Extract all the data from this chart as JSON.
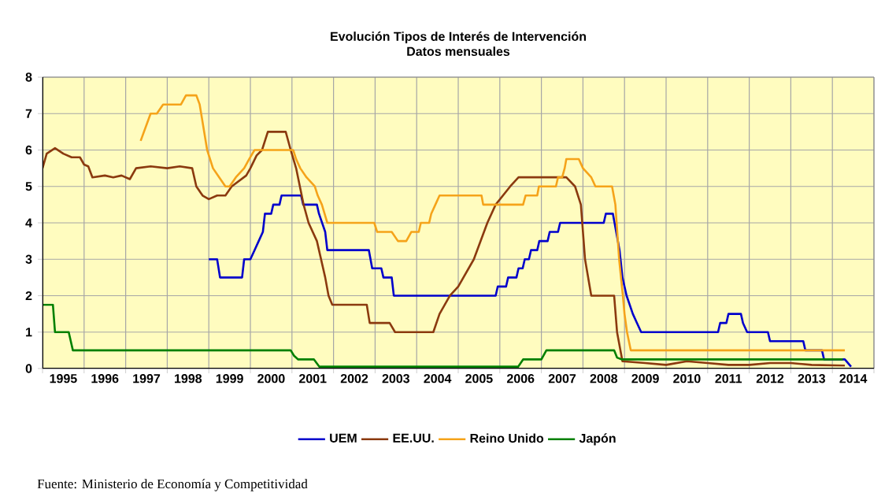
{
  "chart_data": {
    "type": "line",
    "title": "Evolución Tipos de Interés de Intervención",
    "subtitle": "Datos mensuales",
    "annotations": [
      "Fuente: Ministerio de Economía y Competitividad"
    ],
    "xlim": [
      1995,
      2015
    ],
    "xticks": [
      {
        "value": 1995,
        "label": null
      },
      {
        "value": 1996,
        "label": null
      },
      {
        "value": 1997,
        "label": null
      },
      {
        "value": 1998,
        "label": null
      },
      {
        "value": 1999,
        "label": null
      },
      {
        "value": 2000,
        "label": null
      },
      {
        "value": 2001,
        "label": null
      },
      {
        "value": 2002,
        "label": null
      },
      {
        "value": 2003,
        "label": null
      },
      {
        "value": 2004,
        "label": null
      },
      {
        "value": 2005,
        "label": null
      },
      {
        "value": 2006,
        "label": null
      },
      {
        "value": 2007,
        "label": null
      },
      {
        "value": 2008,
        "label": null
      },
      {
        "value": 2009,
        "label": null
      },
      {
        "value": 2010,
        "label": null
      },
      {
        "value": 2011,
        "label": null
      },
      {
        "value": 2012,
        "label": null
      },
      {
        "value": 2013,
        "label": null
      },
      {
        "value": 2014,
        "label": null
      },
      {
        "value": 2015,
        "label": null
      },
      {
        "value": 1995.5,
        "label": "1995"
      },
      {
        "value": 1996.5,
        "label": "1996"
      },
      {
        "value": 1997.5,
        "label": "1997"
      },
      {
        "value": 1998.5,
        "label": "1998"
      },
      {
        "value": 1999.5,
        "label": "1999"
      },
      {
        "value": 2000.5,
        "label": "2000"
      },
      {
        "value": 2001.5,
        "label": "2001"
      },
      {
        "value": 2002.5,
        "label": "2002"
      },
      {
        "value": 2003.5,
        "label": "2003"
      },
      {
        "value": 2004.5,
        "label": "2004"
      },
      {
        "value": 2005.5,
        "label": "2005"
      },
      {
        "value": 2006.5,
        "label": "2006"
      },
      {
        "value": 2007.5,
        "label": "2007"
      },
      {
        "value": 2008.5,
        "label": "2008"
      },
      {
        "value": 2009.5,
        "label": "2009"
      },
      {
        "value": 2010.5,
        "label": "2010"
      },
      {
        "value": 2011.5,
        "label": "2011"
      },
      {
        "value": 2012.5,
        "label": "2012"
      },
      {
        "value": 2013.5,
        "label": "2013"
      },
      {
        "value": 2014.5,
        "label": "2014"
      }
    ],
    "ylim": [
      0,
      8
    ],
    "yticks": [
      0,
      1,
      2,
      3,
      4,
      5,
      6,
      7,
      8
    ],
    "grid": true,
    "legend": "bottom",
    "marker": "none",
    "line_style": "solid",
    "series": [
      {
        "name": "UEM",
        "color": "#0000cc",
        "x": [
          1999.0,
          1999.2,
          1999.27,
          1999.8,
          1999.85,
          2000.0,
          2000.1,
          2000.2,
          2000.3,
          2000.35,
          2000.5,
          2000.55,
          2000.7,
          2000.75,
          2001.22,
          2001.27,
          2001.6,
          2001.65,
          2001.8,
          2001.85,
          2002.85,
          2002.93,
          2003.15,
          2003.2,
          2003.4,
          2003.45,
          2005.9,
          2005.95,
          2006.15,
          2006.2,
          2006.4,
          2006.45,
          2006.55,
          2006.6,
          2006.7,
          2006.75,
          2006.9,
          2006.95,
          2007.15,
          2007.2,
          2007.4,
          2007.45,
          2008.5,
          2008.55,
          2008.72,
          2008.8,
          2008.88,
          2008.95,
          2009.05,
          2009.2,
          2009.3,
          2009.4,
          2011.25,
          2011.3,
          2011.45,
          2011.5,
          2011.8,
          2011.85,
          2011.95,
          2012.45,
          2012.5,
          2013.3,
          2013.35,
          2013.75,
          2013.8,
          2014.3,
          2014.45
        ],
        "values": [
          3.0,
          3.0,
          2.5,
          2.5,
          3.0,
          3.0,
          3.25,
          3.5,
          3.75,
          4.25,
          4.25,
          4.5,
          4.5,
          4.75,
          4.75,
          4.5,
          4.5,
          4.25,
          3.75,
          3.25,
          3.25,
          2.75,
          2.75,
          2.5,
          2.5,
          2.0,
          2.0,
          2.25,
          2.25,
          2.5,
          2.5,
          2.75,
          2.75,
          3.0,
          3.0,
          3.25,
          3.25,
          3.5,
          3.5,
          3.75,
          3.75,
          4.0,
          4.0,
          4.25,
          4.25,
          3.75,
          3.25,
          2.5,
          2.0,
          1.5,
          1.25,
          1.0,
          1.0,
          1.25,
          1.25,
          1.5,
          1.5,
          1.25,
          1.0,
          1.0,
          0.75,
          0.75,
          0.5,
          0.5,
          0.25,
          0.25,
          0.05
        ]
      },
      {
        "name": "EE.UU.",
        "color": "#8b3a0f",
        "x": [
          1995.0,
          1995.1,
          1995.3,
          1995.5,
          1995.7,
          1995.9,
          1996.0,
          1996.1,
          1996.2,
          1996.5,
          1996.7,
          1996.9,
          1997.1,
          1997.25,
          1997.6,
          1998.0,
          1998.3,
          1998.6,
          1998.7,
          1998.85,
          1999.0,
          1999.2,
          1999.4,
          1999.55,
          1999.9,
          2000.0,
          2000.15,
          2000.28,
          2000.42,
          2000.85,
          2000.97,
          2001.1,
          2001.28,
          2001.4,
          2001.6,
          2001.8,
          2001.88,
          2001.97,
          2002.8,
          2002.87,
          2003.35,
          2003.48,
          2004.4,
          2004.55,
          2004.8,
          2005.0,
          2005.375,
          2005.7,
          2005.9,
          2006.25,
          2006.45,
          2007.6,
          2007.81,
          2007.95,
          2008.05,
          2008.2,
          2008.75,
          2008.82,
          2008.95,
          2009.5,
          2010.0,
          2010.5,
          2011.0,
          2011.5,
          2012.0,
          2012.5,
          2013.0,
          2013.5,
          2014.3
        ],
        "values": [
          5.5,
          5.9,
          6.05,
          5.9,
          5.8,
          5.8,
          5.6,
          5.55,
          5.25,
          5.3,
          5.25,
          5.3,
          5.2,
          5.5,
          5.55,
          5.5,
          5.55,
          5.5,
          5.0,
          4.75,
          4.65,
          4.75,
          4.75,
          5.0,
          5.3,
          5.5,
          5.85,
          6.0,
          6.5,
          6.5,
          6.0,
          5.5,
          4.5,
          4.0,
          3.5,
          2.5,
          2.0,
          1.75,
          1.75,
          1.25,
          1.25,
          1.0,
          1.0,
          1.5,
          2.0,
          2.25,
          3.0,
          4.0,
          4.5,
          5.0,
          5.25,
          5.25,
          5.0,
          4.5,
          3.0,
          2.0,
          2.0,
          1.0,
          0.2,
          0.15,
          0.1,
          0.2,
          0.15,
          0.1,
          0.1,
          0.15,
          0.15,
          0.1,
          0.08
        ]
      },
      {
        "name": "Reino Unido",
        "color": "#f5a31a",
        "x": [
          1997.36,
          1997.6,
          1997.75,
          1997.9,
          1998.33,
          1998.45,
          1998.7,
          1998.78,
          1998.96,
          1999.1,
          1999.25,
          1999.4,
          1999.5,
          1999.65,
          1999.85,
          1999.97,
          2000.1,
          2001.03,
          2001.1,
          2001.2,
          2001.35,
          2001.55,
          2001.62,
          2001.72,
          2001.85,
          2002.98,
          2003.05,
          2003.4,
          2003.55,
          2003.75,
          2003.87,
          2004.05,
          2004.1,
          2004.3,
          2004.35,
          2004.45,
          2004.55,
          2005.56,
          2005.6,
          2006.56,
          2006.62,
          2006.9,
          2006.94,
          2007.35,
          2007.4,
          2007.5,
          2007.56,
          2007.6,
          2007.9,
          2008.0,
          2008.2,
          2008.3,
          2008.7,
          2008.78,
          2008.87,
          2008.96,
          2009.0,
          2009.06,
          2009.15,
          2014.3
        ],
        "values": [
          6.25,
          7.0,
          7.0,
          7.25,
          7.25,
          7.5,
          7.5,
          7.25,
          6.0,
          5.5,
          5.25,
          5.0,
          5.0,
          5.25,
          5.5,
          5.75,
          6.0,
          6.0,
          5.75,
          5.5,
          5.25,
          5.0,
          4.75,
          4.5,
          4.0,
          4.0,
          3.75,
          3.75,
          3.5,
          3.5,
          3.75,
          3.75,
          4.0,
          4.0,
          4.25,
          4.5,
          4.75,
          4.75,
          4.5,
          4.5,
          4.75,
          4.75,
          5.0,
          5.0,
          5.25,
          5.25,
          5.5,
          5.75,
          5.75,
          5.5,
          5.25,
          5.0,
          5.0,
          4.5,
          3.0,
          2.0,
          1.5,
          1.0,
          0.5,
          0.5
        ]
      },
      {
        "name": "Japón",
        "color": "#008000",
        "x": [
          1995.0,
          1995.25,
          1995.3,
          1995.63,
          1995.73,
          2000.97,
          2001.05,
          2001.15,
          2001.53,
          2001.66,
          2006.44,
          2006.56,
          2007.0,
          2007.12,
          2008.75,
          2008.82,
          2008.94,
          2014.25
        ],
        "values": [
          1.75,
          1.75,
          1.0,
          1.0,
          0.5,
          0.5,
          0.35,
          0.25,
          0.25,
          0.05,
          0.05,
          0.25,
          0.25,
          0.5,
          0.5,
          0.3,
          0.25,
          0.25
        ]
      }
    ]
  }
}
